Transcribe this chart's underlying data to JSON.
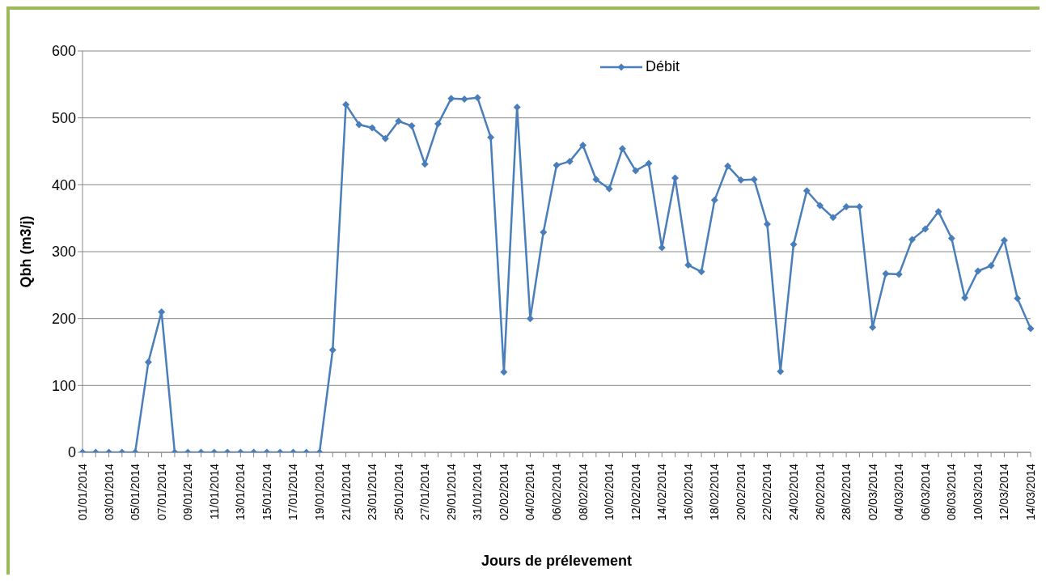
{
  "chart_data": {
    "type": "line",
    "xlabel": "Jours de prélevement",
    "ylabel": "Qbh  (m3/j)",
    "categories": [
      "01/01/2014",
      null,
      "03/01/2014",
      null,
      "05/01/2014",
      null,
      "07/01/2014",
      null,
      "09/01/2014",
      null,
      "11/01/2014",
      null,
      "13/01/2014",
      null,
      "15/01/2014",
      null,
      "17/01/2014",
      null,
      "19/01/2014",
      null,
      "21/01/2014",
      null,
      "23/01/2014",
      null,
      "25/01/2014",
      null,
      "27/01/2014",
      null,
      "29/01/2014",
      null,
      "31/01/2014",
      null,
      "02/02/2014",
      null,
      "04/02/2014",
      null,
      "06/02/2014",
      null,
      "08/02/2014",
      null,
      "10/02/2014",
      null,
      "12/02/2014",
      null,
      "14/02/2014",
      null,
      "16/02/2014",
      null,
      "18/02/2014",
      null,
      "20/02/2014",
      null,
      "22/02/2014",
      null,
      "24/02/2014",
      null,
      "26/02/2014",
      null,
      "28/02/2014",
      null,
      "02/03/2014",
      null,
      "04/03/2014",
      null,
      "06/03/2014",
      null,
      "08/03/2014",
      null,
      "10/03/2014",
      null,
      "12/03/2014",
      null,
      "14/03/2014"
    ],
    "series": [
      {
        "name": "Débit",
        "color": "#4a7ebb",
        "values": [
          0,
          0,
          0,
          0,
          0,
          135,
          210,
          0,
          0,
          0,
          0,
          0,
          0,
          0,
          0,
          0,
          0,
          0,
          0,
          153,
          520,
          490,
          485,
          469,
          495,
          488,
          431,
          491,
          529,
          528,
          530,
          471,
          120,
          516,
          200,
          329,
          429,
          435,
          459,
          408,
          394,
          454,
          421,
          432,
          306,
          410,
          280,
          270,
          377,
          428,
          407,
          408,
          341,
          121,
          311,
          391,
          369,
          351,
          367,
          367,
          187,
          267,
          266,
          318,
          334,
          360,
          320,
          231,
          271,
          279,
          317,
          230,
          185
        ]
      }
    ],
    "ylim": [
      0,
      600
    ],
    "yticks": [
      0,
      100,
      200,
      300,
      400,
      500,
      600
    ],
    "grid": "y",
    "legend": "top right",
    "marker": "diamond",
    "line_style": "solid"
  }
}
